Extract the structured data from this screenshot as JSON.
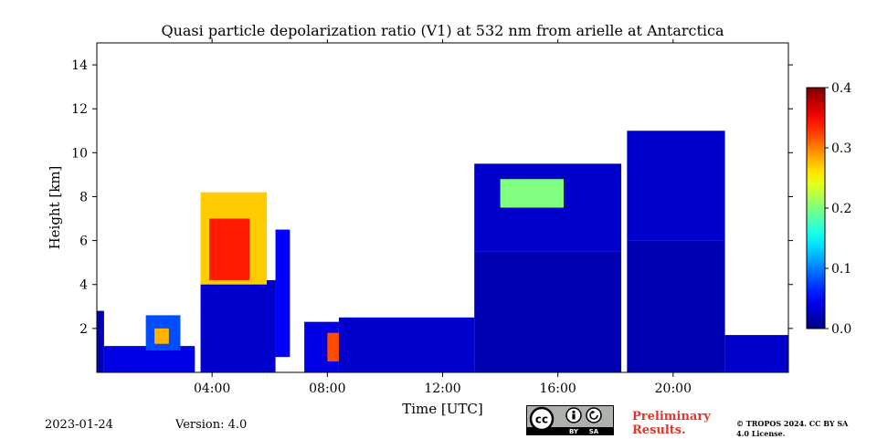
{
  "chart_data": {
    "type": "heatmap",
    "title": "Quasi particle depolarization ratio (V1) at 532 nm from arielle at Antarctica",
    "xlabel": "Time [UTC]",
    "ylabel": "Height [km]",
    "xlim": [
      0,
      24
    ],
    "ylim": [
      0,
      15
    ],
    "x_ticks": [
      {
        "value": 4,
        "label": "04:00"
      },
      {
        "value": 8,
        "label": "08:00"
      },
      {
        "value": 12,
        "label": "12:00"
      },
      {
        "value": 16,
        "label": "16:00"
      },
      {
        "value": 20,
        "label": "20:00"
      }
    ],
    "y_ticks": [
      {
        "value": 2,
        "label": "2"
      },
      {
        "value": 4,
        "label": "4"
      },
      {
        "value": 6,
        "label": "6"
      },
      {
        "value": 8,
        "label": "8"
      },
      {
        "value": 10,
        "label": "10"
      },
      {
        "value": 12,
        "label": "12"
      },
      {
        "value": 14,
        "label": "14"
      }
    ],
    "colorbar": {
      "min": 0.0,
      "max": 0.4,
      "ticks": [
        "0.0",
        "0.1",
        "0.2",
        "0.3",
        "0.4"
      ],
      "colormap": "jet"
    },
    "regions": [
      {
        "t0": 0.0,
        "t1": 0.25,
        "h0": 0.0,
        "h1": 2.8,
        "value": 0.02
      },
      {
        "t0": 0.25,
        "t1": 3.4,
        "h0": 0.0,
        "h1": 1.2,
        "value": 0.04
      },
      {
        "t0": 1.7,
        "t1": 2.9,
        "h0": 1.0,
        "h1": 2.6,
        "value": 0.08
      },
      {
        "t0": 2.0,
        "t1": 2.5,
        "h0": 1.3,
        "h1": 2.0,
        "value": 0.28
      },
      {
        "t0": 3.6,
        "t1": 6.2,
        "h0": 0.0,
        "h1": 4.2,
        "value": 0.03
      },
      {
        "t0": 3.6,
        "t1": 5.9,
        "h0": 4.0,
        "h1": 8.2,
        "value": 0.27
      },
      {
        "t0": 3.9,
        "t1": 5.3,
        "h0": 4.2,
        "h1": 7.0,
        "value": 0.34
      },
      {
        "t0": 6.2,
        "t1": 6.7,
        "h0": 0.7,
        "h1": 6.5,
        "value": 0.05
      },
      {
        "t0": 7.2,
        "t1": 8.4,
        "h0": 0.0,
        "h1": 2.3,
        "value": 0.04
      },
      {
        "t0": 8.0,
        "t1": 8.4,
        "h0": 0.5,
        "h1": 1.8,
        "value": 0.32
      },
      {
        "t0": 8.4,
        "t1": 13.1,
        "h0": 0.0,
        "h1": 2.5,
        "value": 0.03
      },
      {
        "t0": 13.1,
        "t1": 18.2,
        "h0": 0.0,
        "h1": 5.5,
        "value": 0.02
      },
      {
        "t0": 13.1,
        "t1": 18.2,
        "h0": 5.5,
        "h1": 9.5,
        "value": 0.03
      },
      {
        "t0": 14.0,
        "t1": 16.2,
        "h0": 7.5,
        "h1": 8.8,
        "value": 0.2
      },
      {
        "t0": 18.4,
        "t1": 21.8,
        "h0": 0.0,
        "h1": 6.0,
        "value": 0.02
      },
      {
        "t0": 18.4,
        "t1": 21.8,
        "h0": 6.0,
        "h1": 11.0,
        "value": 0.03
      },
      {
        "t0": 21.8,
        "t1": 24.0,
        "h0": 0.0,
        "h1": 1.7,
        "value": 0.03
      }
    ]
  },
  "meta": {
    "date": "2023-01-24",
    "version": "Version: 4.0"
  },
  "license": {
    "badge_cc": "cc",
    "badge_by": "BY",
    "badge_sa": "SA",
    "preliminary": "Preliminary Results.",
    "copyright": "© TROPOS 2024. CC BY SA 4.0 License."
  },
  "colors": {
    "background": "#ffffff",
    "preliminary_text": "#e8322a",
    "badge_bg": "#aab2ab"
  }
}
